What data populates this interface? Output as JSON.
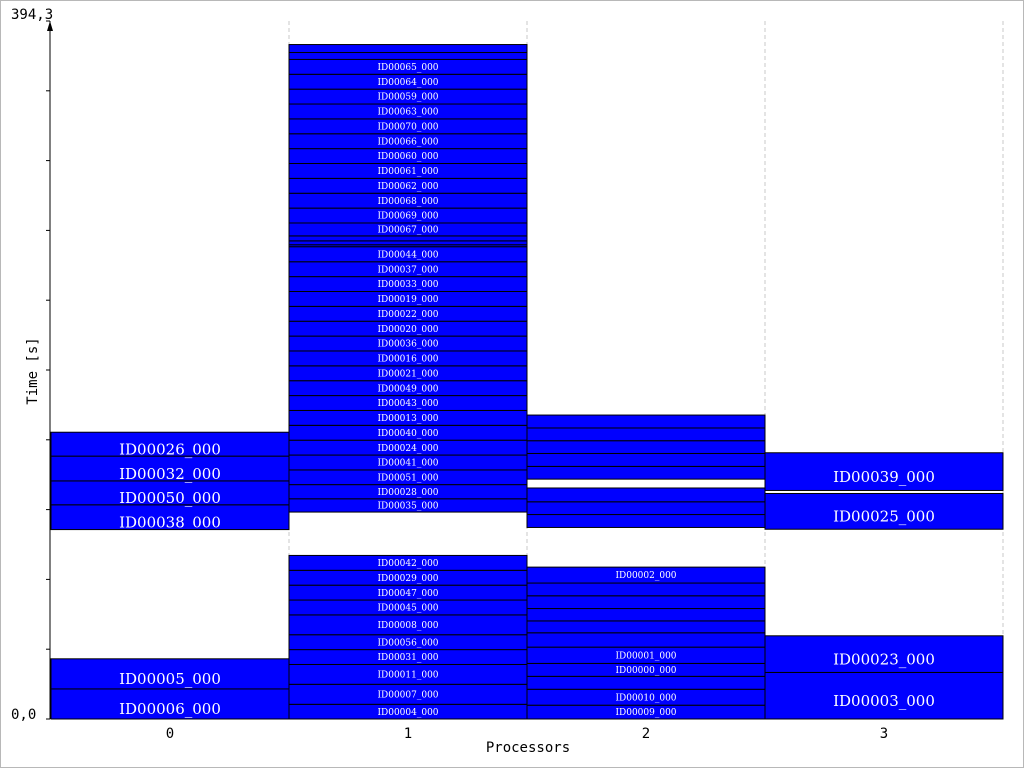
{
  "chart_data": {
    "type": "gantt",
    "xlabel": "Processors",
    "ylabel": "Time [s]",
    "ylim": [
      0,
      394.3
    ],
    "y_max_label": "394,3",
    "y_min_label": "0,0",
    "categories": [
      "0",
      "1",
      "2",
      "3"
    ],
    "colors": {
      "task": "#0000ff",
      "border": "#000000",
      "grid": "#c8c8c8"
    },
    "processors": [
      {
        "name": "0",
        "tasks": [
          {
            "id": "ID00006_000",
            "start": 0.0,
            "end": 17.0
          },
          {
            "id": "ID00005_000",
            "start": 17.0,
            "end": 34.0
          },
          {
            "id": "ID00038_000",
            "start": 107.0,
            "end": 121.0
          },
          {
            "id": "ID00050_000",
            "start": 121.0,
            "end": 134.5
          },
          {
            "id": "ID00032_000",
            "start": 134.5,
            "end": 148.5
          },
          {
            "id": "ID00026_000",
            "start": 148.5,
            "end": 162.0
          }
        ]
      },
      {
        "name": "1",
        "tasks": [
          {
            "id": "ID00004_000",
            "start": 0.0,
            "end": 8.3
          },
          {
            "id": "ID00007_000",
            "start": 8.3,
            "end": 19.6
          },
          {
            "id": "ID00011_000",
            "start": 19.6,
            "end": 30.8
          },
          {
            "id": "ID00031_000",
            "start": 30.8,
            "end": 39.2
          },
          {
            "id": "ID00056_000",
            "start": 39.2,
            "end": 47.6
          },
          {
            "id": "ID00008_000",
            "start": 47.6,
            "end": 58.8
          },
          {
            "id": "ID00045_000",
            "start": 58.8,
            "end": 67.2
          },
          {
            "id": "ID00047_000",
            "start": 67.2,
            "end": 75.6
          },
          {
            "id": "ID00029_000",
            "start": 75.6,
            "end": 84.0
          },
          {
            "id": "ID00042_000",
            "start": 84.0,
            "end": 92.4
          },
          {
            "id": "ID00035_000",
            "start": 116.9,
            "end": 124.4
          },
          {
            "id": "ID00028_000",
            "start": 124.4,
            "end": 132.4
          },
          {
            "id": "ID00051_000",
            "start": 132.4,
            "end": 140.7
          },
          {
            "id": "ID00041_000",
            "start": 140.7,
            "end": 149.1
          },
          {
            "id": "ID00024_000",
            "start": 149.1,
            "end": 157.5
          },
          {
            "id": "ID00040_000",
            "start": 157.5,
            "end": 165.9
          },
          {
            "id": "ID00013_000",
            "start": 165.9,
            "end": 174.3
          },
          {
            "id": "ID00043_000",
            "start": 174.3,
            "end": 182.7
          },
          {
            "id": "ID00049_000",
            "start": 182.7,
            "end": 191.1
          },
          {
            "id": "ID00021_000",
            "start": 191.1,
            "end": 199.5
          },
          {
            "id": "ID00016_000",
            "start": 199.5,
            "end": 207.9
          },
          {
            "id": "ID00036_000",
            "start": 207.9,
            "end": 216.3
          },
          {
            "id": "ID00020_000",
            "start": 216.3,
            "end": 224.7
          },
          {
            "id": "ID00022_000",
            "start": 224.7,
            "end": 233.1
          },
          {
            "id": "ID00019_000",
            "start": 233.1,
            "end": 241.5
          },
          {
            "id": "ID00033_000",
            "start": 241.5,
            "end": 249.9
          },
          {
            "id": "ID00037_000",
            "start": 249.9,
            "end": 258.3
          },
          {
            "id": "ID00044_000",
            "start": 258.3,
            "end": 266.8
          },
          {
            "id": "",
            "start": 266.8,
            "end": 267.9
          },
          {
            "id": "",
            "start": 267.9,
            "end": 270.1
          },
          {
            "id": "",
            "start": 270.1,
            "end": 272.9
          },
          {
            "id": "ID00067_000",
            "start": 272.9,
            "end": 280.2
          },
          {
            "id": "ID00069_000",
            "start": 280.2,
            "end": 288.6
          },
          {
            "id": "ID00068_000",
            "start": 288.6,
            "end": 297.0
          },
          {
            "id": "ID00062_000",
            "start": 297.0,
            "end": 305.4
          },
          {
            "id": "ID00061_000",
            "start": 305.4,
            "end": 313.8
          },
          {
            "id": "ID00060_000",
            "start": 313.8,
            "end": 322.2
          },
          {
            "id": "ID00066_000",
            "start": 322.2,
            "end": 330.6
          },
          {
            "id": "ID00070_000",
            "start": 330.6,
            "end": 339.0
          },
          {
            "id": "ID00063_000",
            "start": 339.0,
            "end": 347.4
          },
          {
            "id": "ID00059_000",
            "start": 347.4,
            "end": 355.8
          },
          {
            "id": "ID00064_000",
            "start": 355.8,
            "end": 364.2
          },
          {
            "id": "ID00065_000",
            "start": 364.2,
            "end": 372.6
          },
          {
            "id": "",
            "start": 372.6,
            "end": 376.5
          },
          {
            "id": "",
            "start": 376.5,
            "end": 381.0
          }
        ]
      },
      {
        "name": "2",
        "tasks": [
          {
            "id": "ID00009_000",
            "start": 0.0,
            "end": 7.8
          },
          {
            "id": "ID00010_000",
            "start": 7.8,
            "end": 16.8
          },
          {
            "id": "",
            "start": 16.8,
            "end": 24.1
          },
          {
            "id": "ID00000_000",
            "start": 24.1,
            "end": 31.4
          },
          {
            "id": "ID00001_000",
            "start": 31.4,
            "end": 40.6
          },
          {
            "id": "",
            "start": 40.6,
            "end": 48.7
          },
          {
            "id": "",
            "start": 48.7,
            "end": 55.4
          },
          {
            "id": "",
            "start": 55.4,
            "end": 62.4
          },
          {
            "id": "",
            "start": 62.4,
            "end": 69.6
          },
          {
            "id": "",
            "start": 69.6,
            "end": 76.8
          },
          {
            "id": "ID00002_000",
            "start": 76.8,
            "end": 85.8
          },
          {
            "id": "",
            "start": 108.2,
            "end": 115.5
          },
          {
            "id": "",
            "start": 115.5,
            "end": 122.7
          },
          {
            "id": "",
            "start": 122.7,
            "end": 130.5
          },
          {
            "id": "",
            "start": 135.5,
            "end": 142.7
          },
          {
            "id": "",
            "start": 142.7,
            "end": 150.0
          },
          {
            "id": "",
            "start": 150.0,
            "end": 157.2
          },
          {
            "id": "",
            "start": 157.2,
            "end": 164.4
          },
          {
            "id": "",
            "start": 164.4,
            "end": 171.7
          }
        ]
      },
      {
        "name": "3",
        "tasks": [
          {
            "id": "ID00003_000",
            "start": 0.0,
            "end": 26.3
          },
          {
            "id": "ID00023_000",
            "start": 26.3,
            "end": 47.0
          },
          {
            "id": "ID00025_000",
            "start": 107.2,
            "end": 127.4
          },
          {
            "id": "ID00039_000",
            "start": 129.1,
            "end": 150.4
          }
        ]
      }
    ]
  }
}
